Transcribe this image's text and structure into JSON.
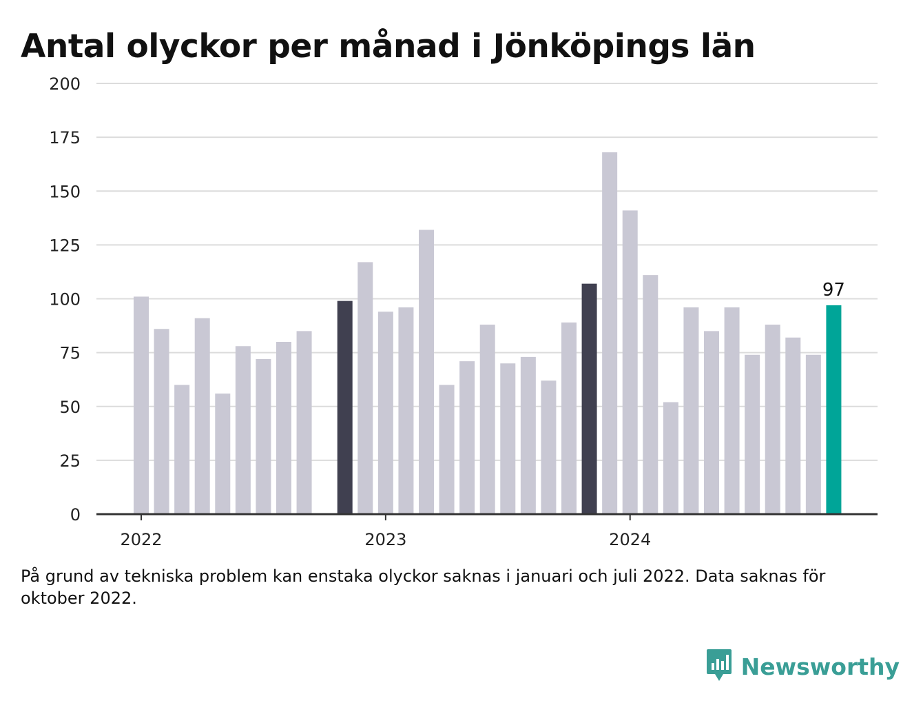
{
  "chart_data": {
    "type": "bar",
    "title": "Antal olyckor per månad i Jönköpings län",
    "xlabel": "",
    "ylabel": "",
    "ylim": [
      0,
      200
    ],
    "yticks": [
      "0",
      "25",
      "50",
      "75",
      "100",
      "125",
      "150",
      "175",
      "200"
    ],
    "grid": true,
    "x_tick_labels": [
      "2022",
      "2023",
      "2024"
    ],
    "categories": [
      "2022-01",
      "2022-02",
      "2022-03",
      "2022-04",
      "2022-05",
      "2022-06",
      "2022-07",
      "2022-08",
      "2022-09",
      "2022-10",
      "2022-11",
      "2022-12",
      "2023-01",
      "2023-02",
      "2023-03",
      "2023-04",
      "2023-05",
      "2023-06",
      "2023-07",
      "2023-08",
      "2023-09",
      "2023-10",
      "2023-11",
      "2023-12",
      "2024-01",
      "2024-02",
      "2024-03",
      "2024-04",
      "2024-05",
      "2024-06",
      "2024-07",
      "2024-08",
      "2024-09",
      "2024-10",
      "2024-11",
      "2024-12"
    ],
    "values": [
      101,
      86,
      60,
      91,
      56,
      78,
      72,
      80,
      85,
      null,
      99,
      117,
      94,
      96,
      132,
      60,
      71,
      88,
      70,
      73,
      62,
      89,
      107,
      168,
      141,
      111,
      52,
      96,
      85,
      96,
      74,
      88,
      82,
      74,
      97,
      null
    ],
    "highlighted_label": "97",
    "colors": {
      "default": "#c9c8d4",
      "november": "#404050",
      "latest": "#00a598",
      "grid": "#dcdcdc",
      "axis": "#333333"
    }
  },
  "footnote": "På grund av tekniska problem kan enstaka olyckor saknas i januari och juli 2022. Data saknas för oktober 2022.",
  "brand": {
    "name": "Newsworthy",
    "icon": "chart-speech-bubble-icon",
    "color": "#3a9e96"
  }
}
